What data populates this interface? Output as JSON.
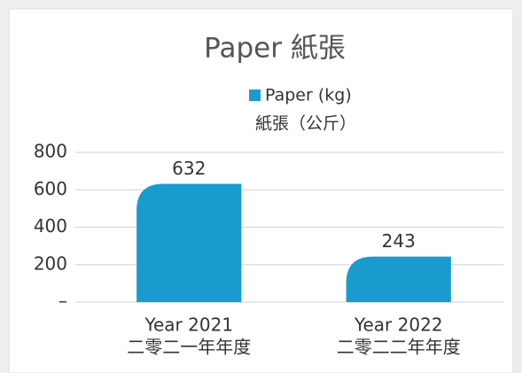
{
  "chart_data": {
    "type": "bar",
    "title": "Paper 紙張",
    "categories": [
      [
        "Year 2021",
        "二零二一年年度"
      ],
      [
        "Year 2022",
        "二零二二年年度"
      ]
    ],
    "series": [
      {
        "name": [
          "Paper (kg)",
          "紙張（公斤）"
        ],
        "color": "#1a9bd0",
        "values": [
          632,
          243
        ]
      }
    ],
    "ylim": [
      0,
      800
    ],
    "yticks": [
      {
        "value": 0,
        "label": "–"
      },
      200,
      400,
      600,
      800
    ],
    "grid": true
  }
}
